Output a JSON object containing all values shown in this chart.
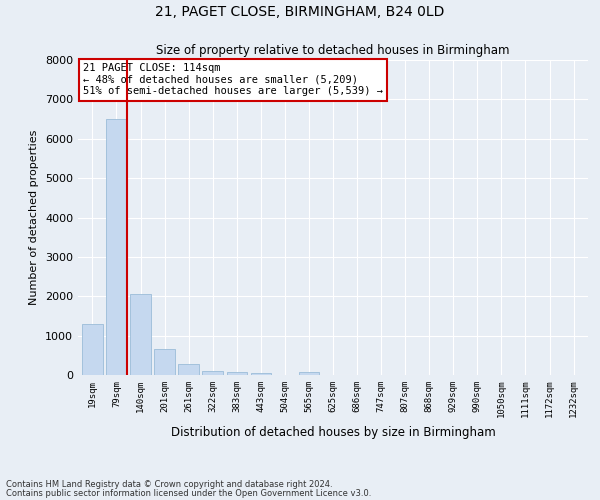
{
  "title1": "21, PAGET CLOSE, BIRMINGHAM, B24 0LD",
  "title2": "Size of property relative to detached houses in Birmingham",
  "xlabel": "Distribution of detached houses by size in Birmingham",
  "ylabel": "Number of detached properties",
  "bar_labels": [
    "19sqm",
    "79sqm",
    "140sqm",
    "201sqm",
    "261sqm",
    "322sqm",
    "383sqm",
    "443sqm",
    "504sqm",
    "565sqm",
    "625sqm",
    "686sqm",
    "747sqm",
    "807sqm",
    "868sqm",
    "929sqm",
    "990sqm",
    "1050sqm",
    "1111sqm",
    "1172sqm",
    "1232sqm"
  ],
  "bar_values": [
    1300,
    6500,
    2050,
    660,
    280,
    110,
    70,
    55,
    0,
    70,
    0,
    0,
    0,
    0,
    0,
    0,
    0,
    0,
    0,
    0,
    0
  ],
  "bar_color": "#c5d8ef",
  "bar_edge_color": "#9bbcd8",
  "vline_color": "#cc0000",
  "annotation_title": "21 PAGET CLOSE: 114sqm",
  "annotation_line1": "← 48% of detached houses are smaller (5,209)",
  "annotation_line2": "51% of semi-detached houses are larger (5,539) →",
  "annotation_box_color": "white",
  "annotation_box_edge": "#cc0000",
  "ylim": [
    0,
    8000
  ],
  "yticks": [
    0,
    1000,
    2000,
    3000,
    4000,
    5000,
    6000,
    7000,
    8000
  ],
  "footnote1": "Contains HM Land Registry data © Crown copyright and database right 2024.",
  "footnote2": "Contains public sector information licensed under the Open Government Licence v3.0.",
  "bg_color": "#e8eef5",
  "plot_bg_color": "#e8eef5",
  "grid_color": "#ffffff"
}
